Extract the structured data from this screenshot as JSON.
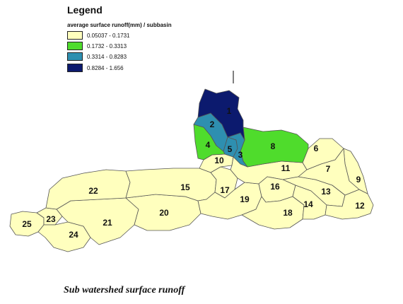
{
  "legend": {
    "title": "Legend",
    "subtitle": "average surface runoff(mm) / subbasin",
    "classes": [
      {
        "label": "0.05037 - 0.1731",
        "color": "#ffffbe"
      },
      {
        "label": "0.1732 - 0.3313",
        "color": "#4fdc2c"
      },
      {
        "label": "0.3314 - 0.8283",
        "color": "#2e8fb0"
      },
      {
        "label": "0.8284 - 1.656",
        "color": "#0c1a6e"
      }
    ]
  },
  "subbasins": [
    {
      "id": "1",
      "class": 3
    },
    {
      "id": "2",
      "class": 2
    },
    {
      "id": "3",
      "class": 2
    },
    {
      "id": "4",
      "class": 1
    },
    {
      "id": "5",
      "class": 2
    },
    {
      "id": "6",
      "class": 0
    },
    {
      "id": "7",
      "class": 0
    },
    {
      "id": "8",
      "class": 1
    },
    {
      "id": "9",
      "class": 0
    },
    {
      "id": "10",
      "class": 0
    },
    {
      "id": "11",
      "class": 0
    },
    {
      "id": "12",
      "class": 0
    },
    {
      "id": "13",
      "class": 0
    },
    {
      "id": "14",
      "class": 0
    },
    {
      "id": "15",
      "class": 0
    },
    {
      "id": "16",
      "class": 0
    },
    {
      "id": "17",
      "class": 0
    },
    {
      "id": "18",
      "class": 0
    },
    {
      "id": "19",
      "class": 0
    },
    {
      "id": "20",
      "class": 0
    },
    {
      "id": "21",
      "class": 0
    },
    {
      "id": "22",
      "class": 0
    },
    {
      "id": "23",
      "class": 0
    },
    {
      "id": "24",
      "class": 0
    },
    {
      "id": "25",
      "class": 0
    }
  ],
  "caption": "Sub watershed surface runoff"
}
